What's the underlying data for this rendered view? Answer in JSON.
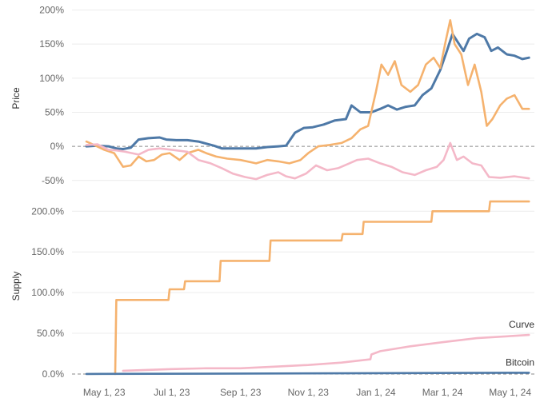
{
  "chart_data": [
    {
      "type": "line",
      "ylabel": "Price",
      "ylim": [
        -62,
        210
      ],
      "yticks": [
        -50,
        0,
        50,
        100,
        150,
        200
      ],
      "ytick_labels": [
        "-50%",
        "0%",
        "50%",
        "100%",
        "150%",
        "200%"
      ],
      "grid": true,
      "x_unit": "date",
      "series": [
        {
          "color": "#4e79a7",
          "points": [
            [
              "2023-04-15",
              0
            ],
            [
              "2023-04-25",
              1
            ],
            [
              "2023-05-05",
              0
            ],
            [
              "2023-05-12",
              -3
            ],
            [
              "2023-05-18",
              -4
            ],
            [
              "2023-05-25",
              -2
            ],
            [
              "2023-06-01",
              10
            ],
            [
              "2023-06-10",
              12
            ],
            [
              "2023-06-20",
              13
            ],
            [
              "2023-06-26",
              10
            ],
            [
              "2023-07-05",
              9
            ],
            [
              "2023-07-15",
              9
            ],
            [
              "2023-07-25",
              7
            ],
            [
              "2023-08-01",
              4
            ],
            [
              "2023-08-08",
              1
            ],
            [
              "2023-08-15",
              -3
            ],
            [
              "2023-08-25",
              -3
            ],
            [
              "2023-09-05",
              -3
            ],
            [
              "2023-09-15",
              -3
            ],
            [
              "2023-09-25",
              -1
            ],
            [
              "2023-10-05",
              0
            ],
            [
              "2023-10-12",
              1
            ],
            [
              "2023-10-20",
              20
            ],
            [
              "2023-10-28",
              27
            ],
            [
              "2023-11-05",
              28
            ],
            [
              "2023-11-15",
              32
            ],
            [
              "2023-11-25",
              38
            ],
            [
              "2023-12-05",
              40
            ],
            [
              "2023-12-10",
              60
            ],
            [
              "2023-12-18",
              50
            ],
            [
              "2023-12-28",
              50
            ],
            [
              "2024-01-05",
              55
            ],
            [
              "2024-01-12",
              60
            ],
            [
              "2024-01-20",
              54
            ],
            [
              "2024-01-28",
              58
            ],
            [
              "2024-02-05",
              60
            ],
            [
              "2024-02-12",
              75
            ],
            [
              "2024-02-20",
              85
            ],
            [
              "2024-02-28",
              112
            ],
            [
              "2024-03-05",
              140
            ],
            [
              "2024-03-10",
              165
            ],
            [
              "2024-03-14",
              155
            ],
            [
              "2024-03-20",
              140
            ],
            [
              "2024-03-25",
              158
            ],
            [
              "2024-04-01",
              165
            ],
            [
              "2024-04-08",
              160
            ],
            [
              "2024-04-14",
              140
            ],
            [
              "2024-04-20",
              145
            ],
            [
              "2024-04-28",
              135
            ],
            [
              "2024-05-05",
              133
            ],
            [
              "2024-05-12",
              128
            ],
            [
              "2024-05-18",
              130
            ]
          ]
        },
        {
          "color": "#f5b26e",
          "points": [
            [
              "2023-04-15",
              7
            ],
            [
              "2023-04-22",
              2
            ],
            [
              "2023-05-01",
              -5
            ],
            [
              "2023-05-10",
              -10
            ],
            [
              "2023-05-18",
              -30
            ],
            [
              "2023-05-25",
              -28
            ],
            [
              "2023-06-01",
              -15
            ],
            [
              "2023-06-08",
              -22
            ],
            [
              "2023-06-15",
              -20
            ],
            [
              "2023-06-22",
              -12
            ],
            [
              "2023-06-29",
              -10
            ],
            [
              "2023-07-08",
              -20
            ],
            [
              "2023-07-15",
              -10
            ],
            [
              "2023-07-25",
              -5
            ],
            [
              "2023-08-01",
              -10
            ],
            [
              "2023-08-10",
              -15
            ],
            [
              "2023-08-20",
              -18
            ],
            [
              "2023-09-01",
              -20
            ],
            [
              "2023-09-15",
              -25
            ],
            [
              "2023-09-25",
              -20
            ],
            [
              "2023-10-05",
              -22
            ],
            [
              "2023-10-15",
              -25
            ],
            [
              "2023-10-25",
              -20
            ],
            [
              "2023-11-01",
              -10
            ],
            [
              "2023-11-10",
              0
            ],
            [
              "2023-11-20",
              2
            ],
            [
              "2023-12-01",
              5
            ],
            [
              "2023-12-10",
              12
            ],
            [
              "2023-12-18",
              25
            ],
            [
              "2023-12-25",
              30
            ],
            [
              "2024-01-01",
              80
            ],
            [
              "2024-01-06",
              120
            ],
            [
              "2024-01-12",
              105
            ],
            [
              "2024-01-18",
              125
            ],
            [
              "2024-01-24",
              90
            ],
            [
              "2024-02-01",
              80
            ],
            [
              "2024-02-08",
              90
            ],
            [
              "2024-02-15",
              120
            ],
            [
              "2024-02-22",
              130
            ],
            [
              "2024-02-28",
              115
            ],
            [
              "2024-03-04",
              155
            ],
            [
              "2024-03-08",
              185
            ],
            [
              "2024-03-12",
              150
            ],
            [
              "2024-03-18",
              135
            ],
            [
              "2024-03-24",
              90
            ],
            [
              "2024-03-30",
              120
            ],
            [
              "2024-04-05",
              80
            ],
            [
              "2024-04-10",
              30
            ],
            [
              "2024-04-15",
              40
            ],
            [
              "2024-04-22",
              60
            ],
            [
              "2024-04-28",
              70
            ],
            [
              "2024-05-05",
              75
            ],
            [
              "2024-05-12",
              55
            ],
            [
              "2024-05-18",
              55
            ]
          ]
        },
        {
          "color": "#f4b8c8",
          "points": [
            [
              "2023-04-15",
              2
            ],
            [
              "2023-04-25",
              3
            ],
            [
              "2023-05-05",
              -5
            ],
            [
              "2023-05-12",
              -6
            ],
            [
              "2023-05-20",
              -8
            ],
            [
              "2023-06-01",
              -12
            ],
            [
              "2023-06-10",
              -5
            ],
            [
              "2023-06-20",
              -3
            ],
            [
              "2023-07-01",
              -5
            ],
            [
              "2023-07-15",
              -8
            ],
            [
              "2023-07-25",
              -20
            ],
            [
              "2023-08-05",
              -25
            ],
            [
              "2023-08-15",
              -32
            ],
            [
              "2023-08-25",
              -40
            ],
            [
              "2023-09-05",
              -45
            ],
            [
              "2023-09-15",
              -48
            ],
            [
              "2023-09-25",
              -42
            ],
            [
              "2023-10-05",
              -38
            ],
            [
              "2023-10-12",
              -44
            ],
            [
              "2023-10-20",
              -47
            ],
            [
              "2023-10-30",
              -40
            ],
            [
              "2023-11-08",
              -28
            ],
            [
              "2023-11-18",
              -35
            ],
            [
              "2023-11-28",
              -32
            ],
            [
              "2023-12-08",
              -25
            ],
            [
              "2023-12-15",
              -20
            ],
            [
              "2023-12-25",
              -18
            ],
            [
              "2024-01-05",
              -25
            ],
            [
              "2024-01-15",
              -30
            ],
            [
              "2024-01-25",
              -38
            ],
            [
              "2024-02-05",
              -42
            ],
            [
              "2024-02-15",
              -35
            ],
            [
              "2024-02-25",
              -30
            ],
            [
              "2024-03-02",
              -20
            ],
            [
              "2024-03-08",
              5
            ],
            [
              "2024-03-14",
              -20
            ],
            [
              "2024-03-20",
              -15
            ],
            [
              "2024-03-28",
              -25
            ],
            [
              "2024-04-05",
              -28
            ],
            [
              "2024-04-12",
              -45
            ],
            [
              "2024-04-22",
              -46
            ],
            [
              "2024-05-05",
              -44
            ],
            [
              "2024-05-18",
              -47
            ]
          ]
        }
      ]
    },
    {
      "type": "line",
      "ylabel": "Supply",
      "ylim": [
        -3,
        216
      ],
      "yticks": [
        0,
        50,
        100,
        150,
        200
      ],
      "ytick_labels": [
        "0.0%",
        "50.0%",
        "100.0%",
        "150.0%",
        "200.0%"
      ],
      "xticks": [
        "2023-05-01",
        "2023-07-01",
        "2023-09-01",
        "2023-11-01",
        "2024-01-01",
        "2024-03-01",
        "2024-05-01"
      ],
      "xtick_labels": [
        "May 1, 23",
        "Jul 1, 23",
        "Sep 1, 23",
        "Nov 1, 23",
        "Jan 1, 24",
        "Mar 1, 24",
        "May 1, 24"
      ],
      "grid": true,
      "x_unit": "date",
      "series": [
        {
          "color": "#f5b26e",
          "step": true,
          "points": [
            [
              "2023-05-11",
              0
            ],
            [
              "2023-05-12",
              91
            ],
            [
              "2023-06-28",
              91
            ],
            [
              "2023-06-29",
              104
            ],
            [
              "2023-07-12",
              104
            ],
            [
              "2023-07-13",
              114
            ],
            [
              "2023-08-13",
              114
            ],
            [
              "2023-08-14",
              139
            ],
            [
              "2023-09-27",
              139
            ],
            [
              "2023-09-28",
              164
            ],
            [
              "2023-12-01",
              164
            ],
            [
              "2023-12-02",
              172
            ],
            [
              "2023-12-20",
              172
            ],
            [
              "2023-12-21",
              187
            ],
            [
              "2024-02-20",
              187
            ],
            [
              "2024-02-21",
              200
            ],
            [
              "2024-04-12",
              200
            ],
            [
              "2024-04-13",
              212
            ],
            [
              "2024-05-18",
              212
            ]
          ]
        },
        {
          "name": "Curve",
          "color": "#f4b8c8",
          "points": [
            [
              "2023-05-18",
              4
            ],
            [
              "2023-07-01",
              6
            ],
            [
              "2023-08-01",
              7
            ],
            [
              "2023-09-01",
              7
            ],
            [
              "2023-10-01",
              9
            ],
            [
              "2023-11-01",
              11
            ],
            [
              "2023-12-01",
              14
            ],
            [
              "2023-12-27",
              18
            ],
            [
              "2023-12-28",
              24
            ],
            [
              "2024-01-05",
              28
            ],
            [
              "2024-02-01",
              34
            ],
            [
              "2024-03-01",
              39
            ],
            [
              "2024-04-01",
              44
            ],
            [
              "2024-05-18",
              48
            ]
          ]
        },
        {
          "name": "Bitcoin",
          "color": "#4e79a7",
          "points": [
            [
              "2023-04-15",
              0
            ],
            [
              "2023-09-01",
              0.5
            ],
            [
              "2024-01-01",
              1
            ],
            [
              "2024-05-18",
              1.5
            ]
          ]
        }
      ]
    }
  ]
}
